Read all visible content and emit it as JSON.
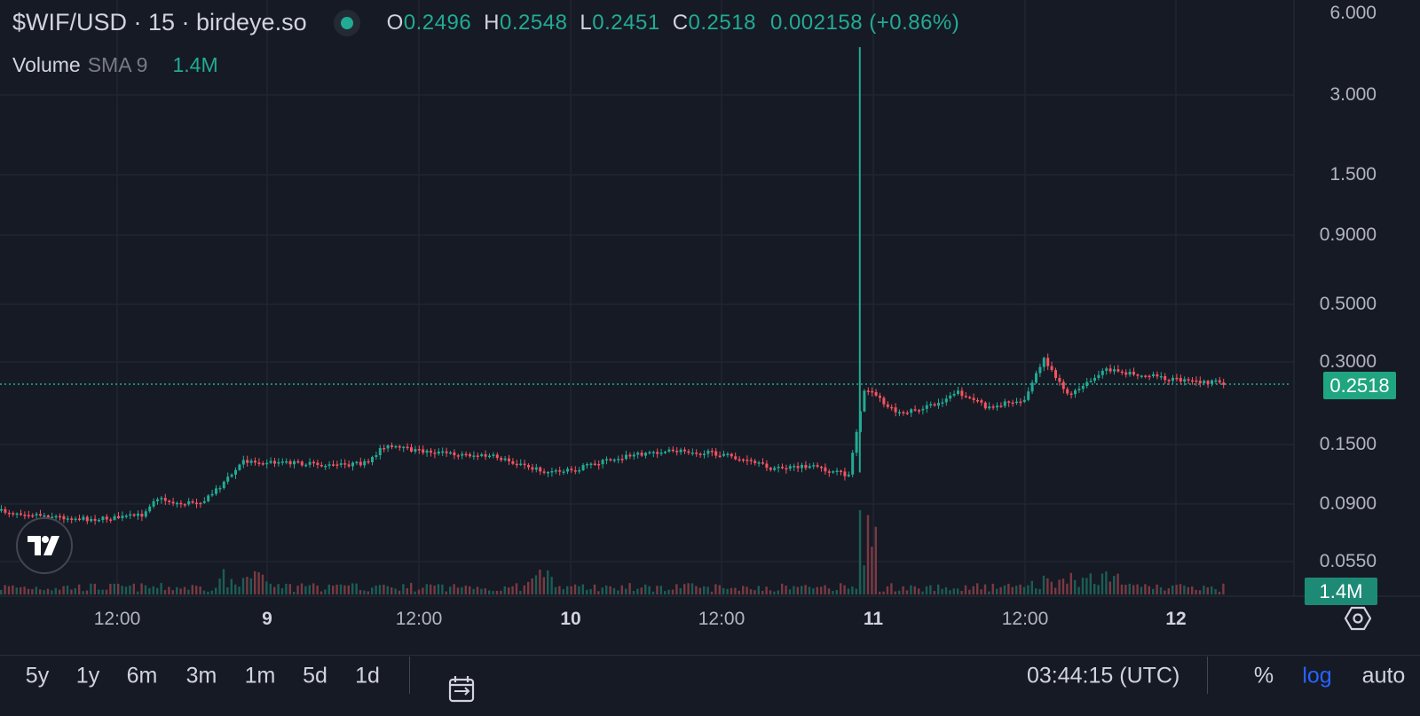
{
  "legend": {
    "symbol": "$WIF/USD · 15 · birdeye.so",
    "open_label": "O",
    "open": "0.2496",
    "high_label": "H",
    "high": "0.2548",
    "low_label": "L",
    "low": "0.2451",
    "close_label": "C",
    "close": "0.2518",
    "change": "0.002158 (+0.86%)"
  },
  "volume_legend": {
    "label": "Volume",
    "indicator": "SMA 9",
    "value": "1.4M"
  },
  "price_axis": {
    "ticks": [
      "6.000",
      "3.000",
      "1.500",
      "0.9000",
      "0.5000",
      "0.3000",
      "0.1500",
      "0.0900",
      "0.0550"
    ],
    "current_price_label": "0.2518",
    "volume_label": "1.4M"
  },
  "time_axis": {
    "ticks": [
      "12:00",
      "9",
      "12:00",
      "10",
      "12:00",
      "11",
      "12:00",
      "12"
    ]
  },
  "toolbar": {
    "ranges": [
      "5y",
      "1y",
      "6m",
      "3m",
      "1m",
      "5d",
      "1d"
    ],
    "clock": "03:44:15 (UTC)",
    "percent": "%",
    "log": "log",
    "auto": "auto"
  },
  "colors": {
    "up": "#22ab94",
    "down": "#f7525f",
    "background": "#161a25",
    "grid": "#232734",
    "log_active": "#2962ff"
  },
  "chart_data": {
    "type": "candlestick",
    "title": "$WIF/USD · 15 · birdeye.so",
    "interval": "15",
    "y_scale": "log",
    "grid": true,
    "y_ticks": [
      6.0,
      3.0,
      1.5,
      0.9,
      0.5,
      0.3,
      0.15,
      0.09,
      0.055
    ],
    "x_ticks": [
      "12:00",
      "9",
      "12:00",
      "10",
      "12:00",
      "11",
      "12:00",
      "12"
    ],
    "last": {
      "open": 0.2496,
      "high": 0.2548,
      "low": 0.2451,
      "close": 0.2518,
      "change": 0.002158,
      "change_pct": 0.86
    },
    "close_path": [
      {
        "t": "Mar 8 02:00",
        "close": 0.085
      },
      {
        "t": "Mar 8 05:00",
        "close": 0.083
      },
      {
        "t": "Mar 8 08:00",
        "close": 0.08
      },
      {
        "t": "Mar 8 10:00",
        "close": 0.079
      },
      {
        "t": "Mar 8 12:00",
        "close": 0.08
      },
      {
        "t": "Mar 8 14:00",
        "close": 0.082
      },
      {
        "t": "Mar 8 15:00",
        "close": 0.095
      },
      {
        "t": "Mar 8 17:00",
        "close": 0.09
      },
      {
        "t": "Mar 8 19:00",
        "close": 0.093
      },
      {
        "t": "Mar 8 21:00",
        "close": 0.115
      },
      {
        "t": "Mar 8 22:00",
        "close": 0.13
      },
      {
        "t": "Mar 9 02:00",
        "close": 0.128
      },
      {
        "t": "Mar 9 05:00",
        "close": 0.125
      },
      {
        "t": "Mar 9 08:00",
        "close": 0.128
      },
      {
        "t": "Mar 9 09:00",
        "close": 0.148
      },
      {
        "t": "Mar 9 12:00",
        "close": 0.142
      },
      {
        "t": "Mar 9 15:00",
        "close": 0.138
      },
      {
        "t": "Mar 9 18:00",
        "close": 0.135
      },
      {
        "t": "Mar 9 22:00",
        "close": 0.118
      },
      {
        "t": "Mar 10 00:00",
        "close": 0.12
      },
      {
        "t": "Mar 10 03:00",
        "close": 0.132
      },
      {
        "t": "Mar 10 06:00",
        "close": 0.14
      },
      {
        "t": "Mar 10 09:00",
        "close": 0.142
      },
      {
        "t": "Mar 10 12:00",
        "close": 0.138
      },
      {
        "t": "Mar 10 16:00",
        "close": 0.122
      },
      {
        "t": "Mar 10 19:00",
        "close": 0.124
      },
      {
        "t": "Mar 10 22:00",
        "close": 0.115
      },
      {
        "t": "Mar 10 23:15",
        "close": 0.24
      },
      {
        "t": "Mar 11 02:00",
        "close": 0.195
      },
      {
        "t": "Mar 11 05:00",
        "close": 0.21
      },
      {
        "t": "Mar 11 06:30",
        "close": 0.235
      },
      {
        "t": "Mar 11 09:00",
        "close": 0.205
      },
      {
        "t": "Mar 11 12:00",
        "close": 0.22
      },
      {
        "t": "Mar 11 13:30",
        "close": 0.31
      },
      {
        "t": "Mar 11 15:30",
        "close": 0.225
      },
      {
        "t": "Mar 11 18:30",
        "close": 0.282
      },
      {
        "t": "Mar 11 21:00",
        "close": 0.27
      },
      {
        "t": "Mar 12 01:00",
        "close": 0.255
      },
      {
        "t": "Mar 12 03:45",
        "close": 0.2518
      }
    ],
    "spike": {
      "t": "Mar 10 23:00",
      "high": 4.5
    },
    "volume_current": "1.4M"
  }
}
